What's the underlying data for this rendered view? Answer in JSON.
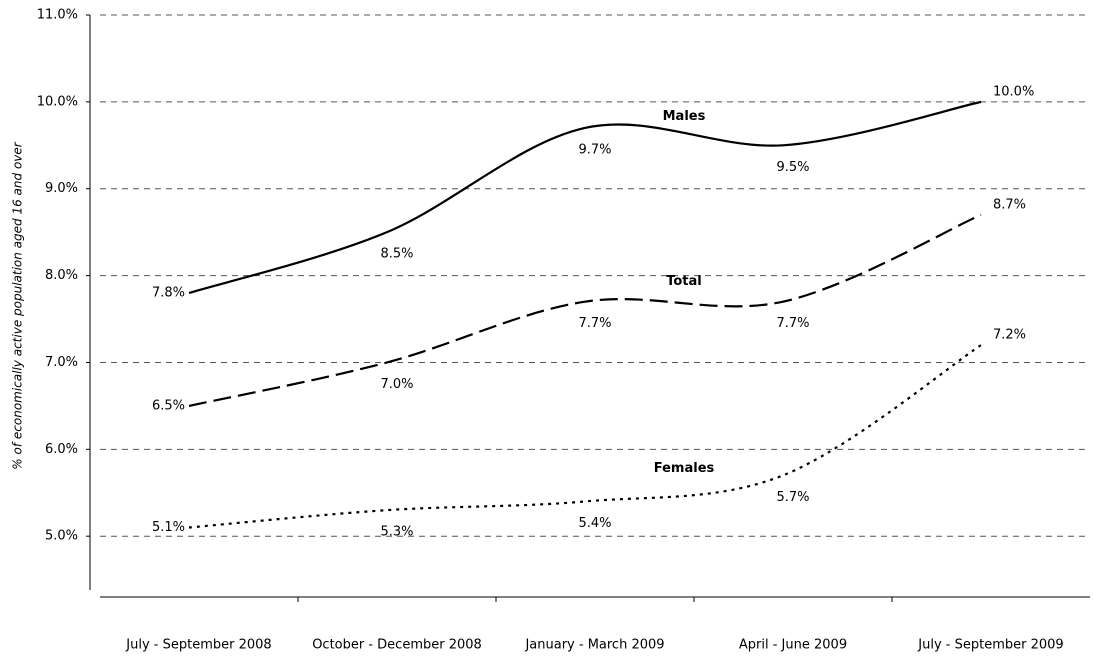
{
  "chart_data": {
    "type": "line",
    "y_label": "% of economically active population aged 16 and over",
    "categories": [
      "July - September 2008",
      "October - December 2008",
      "January - March 2009",
      "April - June 2009",
      "July - September 2009"
    ],
    "series": [
      {
        "name": "Males",
        "color": "#000000",
        "dash": "solid",
        "values": [
          7.8,
          8.5,
          9.7,
          9.5,
          10.0
        ],
        "value_labels": [
          "7.8%",
          "8.5%",
          "9.7%",
          "9.5%",
          "10.0%"
        ]
      },
      {
        "name": "Total",
        "color": "#000000",
        "dash": "dashed",
        "values": [
          6.5,
          7.0,
          7.7,
          7.7,
          8.7
        ],
        "value_labels": [
          "6.5%",
          "7.0%",
          "7.7%",
          "7.7%",
          "8.7%"
        ]
      },
      {
        "name": "Females",
        "color": "#000000",
        "dash": "dotted",
        "values": [
          5.1,
          5.3,
          5.4,
          5.7,
          7.2
        ],
        "value_labels": [
          "5.1%",
          "5.3%",
          "5.4%",
          "5.7%",
          "7.2%"
        ]
      }
    ],
    "ylim": [
      4.3,
      11.0
    ],
    "yticks": [
      {
        "value": 5.0,
        "label": "5.0%"
      },
      {
        "value": 6.0,
        "label": "6.0%"
      },
      {
        "value": 7.0,
        "label": "7.0%"
      },
      {
        "value": 8.0,
        "label": "8.0%"
      },
      {
        "value": 9.0,
        "label": "9.0%"
      },
      {
        "value": 10.0,
        "label": "10.0%"
      },
      {
        "value": 11.0,
        "label": "11.0%"
      }
    ],
    "grid": true,
    "smooth": true
  }
}
